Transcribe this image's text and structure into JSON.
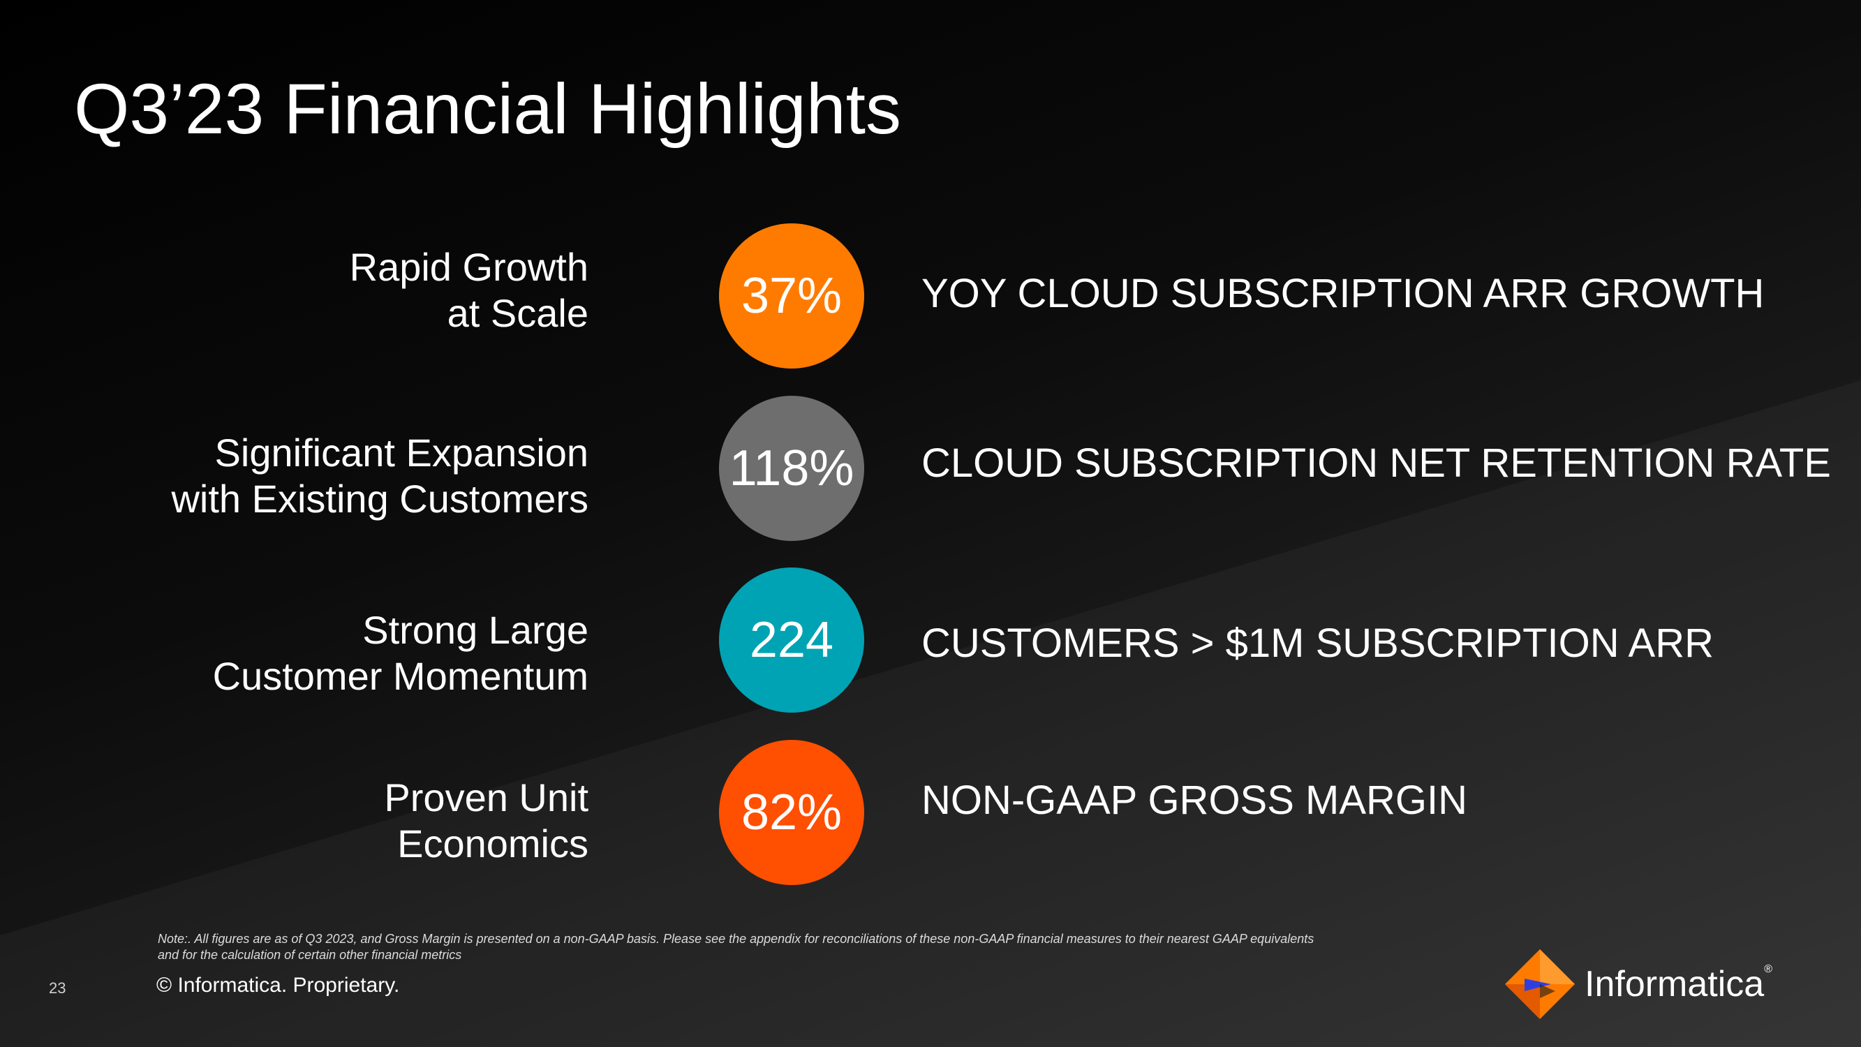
{
  "title": "Q3’23 Financial Highlights",
  "rows": [
    {
      "label_line1": "Rapid Growth",
      "label_line2": "at Scale",
      "value": "37%",
      "color": "#FF7B00",
      "description": "YOY CLOUD SUBSCRIPTION ARR GROWTH"
    },
    {
      "label_line1": "Significant Expansion",
      "label_line2": "with Existing Customers",
      "value": "118%",
      "color": "#6E6E6E",
      "description": "CLOUD SUBSCRIPTION NET RETENTION RATE"
    },
    {
      "label_line1": "Strong Large",
      "label_line2": "Customer Momentum",
      "value": "224",
      "color": "#00A3B4",
      "description": "CUSTOMERS > $1M SUBSCRIPTION ARR"
    },
    {
      "label_line1": "Proven Unit",
      "label_line2": "Economics",
      "value": "82%",
      "color": "#FF4F00",
      "description": "NON-GAAP GROSS MARGIN"
    }
  ],
  "footer": {
    "note_line1": "Note:. All figures are as of Q3 2023, and Gross Margin is presented on a non-GAAP basis. Please see the appendix for reconciliations of these non-GAAP financial measures to their nearest GAAP equivalents",
    "note_line2": "and for the calculation of certain other financial metrics",
    "page_number": "23",
    "copyright": "© Informatica. Proprietary.",
    "logo_text": "Informatica",
    "logo_mark": "®"
  }
}
